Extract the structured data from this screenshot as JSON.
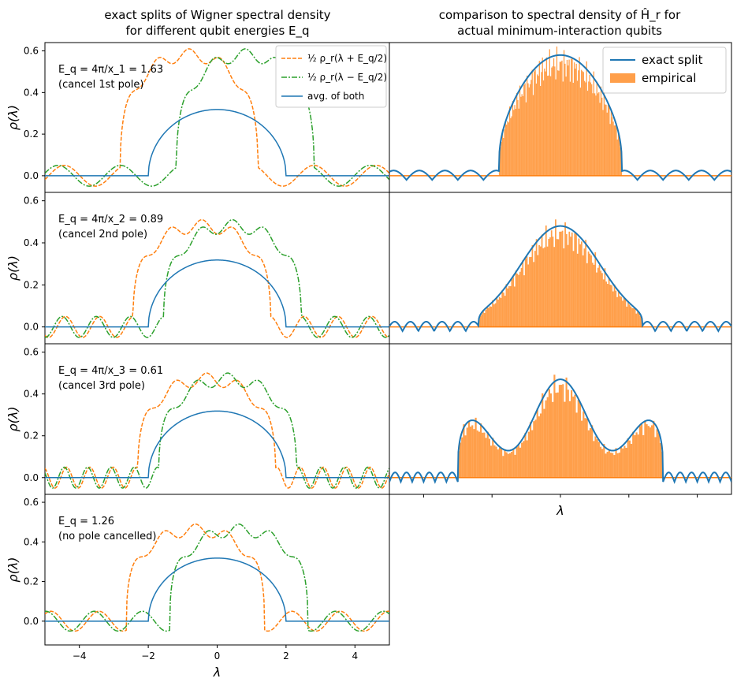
{
  "figure": {
    "left_title": [
      "exact splits of Wigner spectral density",
      "for different qubit energies E_q"
    ],
    "right_title": [
      "comparison to spectral density of Ĥ_r for",
      "actual minimum-interaction qubits"
    ]
  },
  "legends": {
    "left": [
      "½ ρ_r(λ + E_q/2)",
      "½ ρ_r(λ − E_q/2)",
      "avg. of both"
    ],
    "right": [
      "exact split",
      "empirical"
    ]
  },
  "colors": {
    "orange": "#ff7f0e",
    "green": "#2ca02c",
    "blue": "#1f77b4",
    "hist": "#ff7f0e"
  },
  "chart_data": [
    {
      "type": "line",
      "panel": "left-1",
      "annotation": [
        "E_q = 4π/x_1 = 1.63",
        "(cancel 1st pole)"
      ],
      "Eq": 1.63,
      "xlim": [
        -5,
        5
      ],
      "ylim": [
        -0.08,
        0.64
      ],
      "ylabel": "ρ(λ)",
      "yticks": [
        "0.0",
        "0.2",
        "0.4",
        "0.6"
      ],
      "series": [
        "½ ρ_r(λ + E_q/2)",
        "½ ρ_r(λ − E_q/2)",
        "avg. of both"
      ],
      "peak_values": {
        "half_shifted": 0.58,
        "average": 0.318
      }
    },
    {
      "type": "line",
      "panel": "left-2",
      "annotation": [
        "E_q = 4π/x_2 = 0.89",
        "(cancel 2nd pole)"
      ],
      "Eq": 0.89,
      "xlim": [
        -5,
        5
      ],
      "ylim": [
        -0.08,
        0.64
      ],
      "ylabel": "ρ(λ)",
      "yticks": [
        "0.0",
        "0.2",
        "0.4",
        "0.6"
      ],
      "peak_values": {
        "half_shifted": 0.48,
        "average": 0.318
      }
    },
    {
      "type": "line",
      "panel": "left-3",
      "annotation": [
        "E_q = 4π/x_3 = 0.61",
        "(cancel 3rd pole)"
      ],
      "Eq": 0.61,
      "xlim": [
        -5,
        5
      ],
      "ylim": [
        -0.08,
        0.64
      ],
      "ylabel": "ρ(λ)",
      "yticks": [
        "0.0",
        "0.2",
        "0.4",
        "0.6"
      ],
      "peak_values": {
        "half_shifted": 0.47,
        "average": 0.318
      }
    },
    {
      "type": "line",
      "panel": "left-4",
      "annotation": [
        "E_q = 1.26",
        "(no pole cancelled)"
      ],
      "Eq": 1.26,
      "xlim": [
        -5,
        5
      ],
      "ylim": [
        -0.12,
        0.64
      ],
      "ylabel": "ρ(λ)",
      "xlabel": "λ",
      "yticks": [
        "0.0",
        "0.2",
        "0.4",
        "0.6"
      ],
      "xticks": [
        "−4",
        "−2",
        "0",
        "2",
        "4"
      ],
      "peak_values": {
        "half_shifted": 0.46,
        "average": 0.318
      }
    },
    {
      "type": "line+histogram",
      "panel": "right-1",
      "series": [
        "exact split",
        "empirical"
      ],
      "peaks": 1,
      "peak_value": 0.58
    },
    {
      "type": "line+histogram",
      "panel": "right-2",
      "series": [
        "exact split",
        "empirical"
      ],
      "peaks": 2,
      "peak_value": 0.48
    },
    {
      "type": "line+histogram",
      "panel": "right-3",
      "series": [
        "exact split",
        "empirical"
      ],
      "peaks": 3,
      "peak_value": 0.47,
      "xlabel": "λ"
    }
  ]
}
